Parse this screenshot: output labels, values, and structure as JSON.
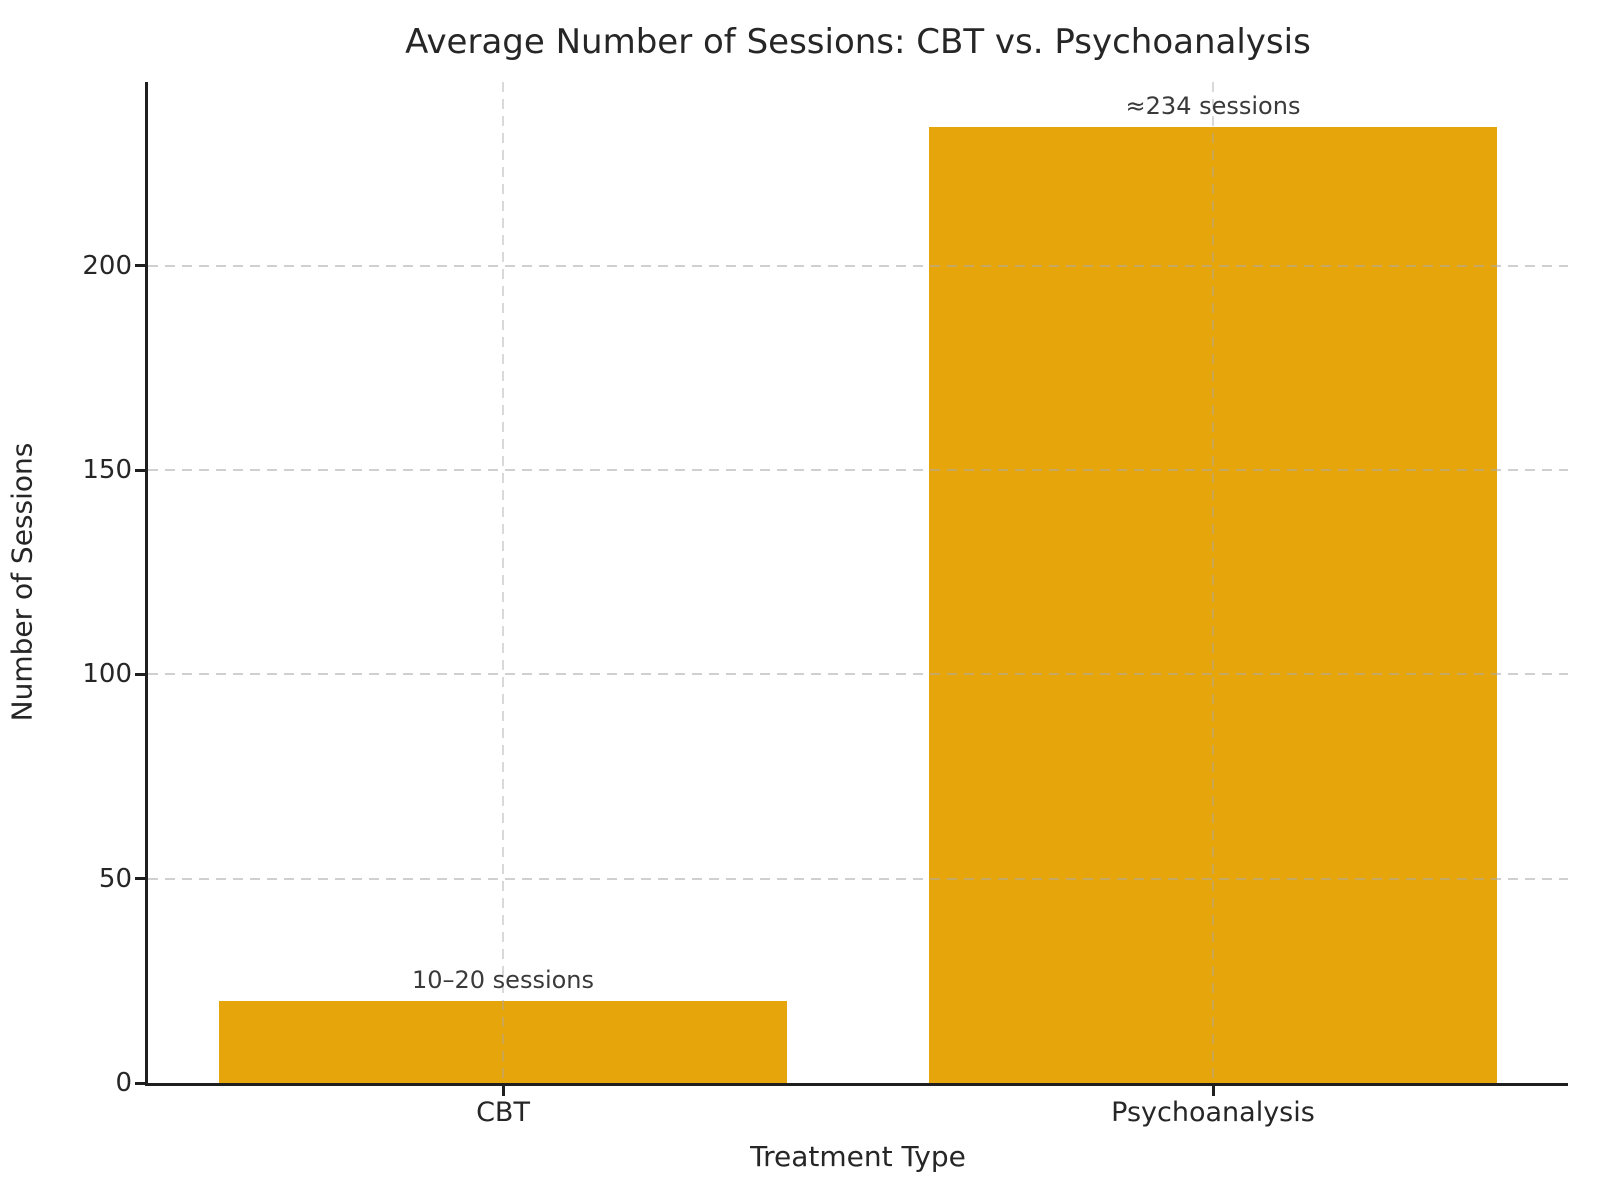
{
  "chart_data": {
    "type": "bar",
    "title": "Average Number of Sessions: CBT vs. Psychoanalysis",
    "xlabel": "Treatment Type",
    "ylabel": "Number of Sessions",
    "categories": [
      "CBT",
      "Psychoanalysis"
    ],
    "values": [
      20,
      234
    ],
    "bar_annotations": [
      "10–20 sessions",
      "≈234 sessions"
    ],
    "bar_color": "#E6A50A",
    "background_color": "#ffffff",
    "spine_color": "#1f1f1f",
    "grid_color": "#bbbbbb",
    "grid": "dashed gridlines on both axes, drawn faintly over bars",
    "legend_position": "none",
    "ylim": [
      0,
      245
    ],
    "yticks": [
      0,
      50,
      100,
      150,
      200
    ],
    "bar_width_fraction": 0.8,
    "xlim_category_units": [
      -0.5,
      1.5
    ]
  }
}
